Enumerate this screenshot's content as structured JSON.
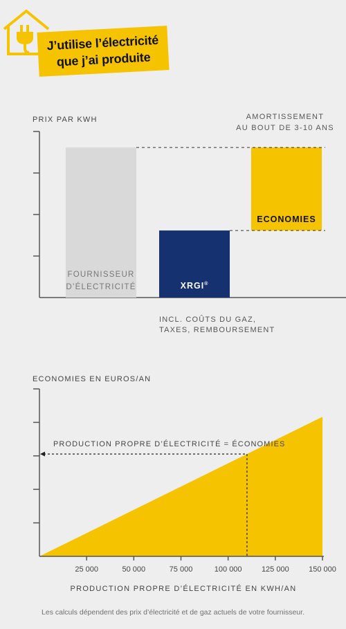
{
  "header": {
    "title_line1": "J’utilise l’électricité",
    "title_line2": "que j’ai produite",
    "icon": "house-plug-icon"
  },
  "colors": {
    "yellow": "#f5c300",
    "navy": "#163170",
    "light_gray": "#d9d9d9",
    "axis": "#555555",
    "background": "#eeeeee"
  },
  "chart_data": [
    {
      "type": "bar",
      "title": "",
      "ylabel": "PRIX PAR KWH",
      "xlabel": "",
      "grid": false,
      "legend": "none",
      "categories": [
        "FOURNISSEUR D’ÉLECTRICITÉ",
        "XRGI®",
        "ECONOMIES"
      ],
      "values": [
        2.35,
        1.05,
        2.35
      ],
      "base": [
        0,
        0,
        1.05
      ],
      "bar_labels": {
        "supplier_line1": "FOURNISSEUR",
        "supplier_line2": "D’ÉLECTRICITÉ",
        "xrgi": "XRGI",
        "xrgi_mark": "®",
        "savings": "ECONOMIES"
      },
      "ylim": [
        0,
        2.6
      ],
      "annotations": {
        "amortization_line1": "AMORTISSEMENT",
        "amortization_line2": "AU BOUT DE 3-10 ANS",
        "costs_line1": "INCL. COÛTS DU GAZ,",
        "costs_line2": "TAXES, REMBOURSEMENT"
      }
    },
    {
      "type": "area",
      "title": "",
      "ylabel": "ECONOMIES EN EUROS/AN",
      "xlabel": "PRODUCTION PROPRE D’ÉLECTRICITÉ EN KWH/AN",
      "grid": false,
      "legend": "none",
      "x": [
        0,
        150000
      ],
      "y": [
        0,
        100
      ],
      "xlim": [
        0,
        150000
      ],
      "ylim": [
        0,
        120
      ],
      "xticks": [
        25000,
        50000,
        75000,
        100000,
        125000,
        150000
      ],
      "xtick_labels": [
        "25 000",
        "50 000",
        "75 000",
        "100 000",
        "125 000",
        "150 000"
      ],
      "marker": {
        "x": 110000,
        "label": "PRODUCTION PROPRE D’ÉLECTRICITÉ = ÉCONOMIES"
      }
    }
  ],
  "footnote": "Les calculs dépendent des prix d’électricité et de gaz actuels de votre fournisseur."
}
